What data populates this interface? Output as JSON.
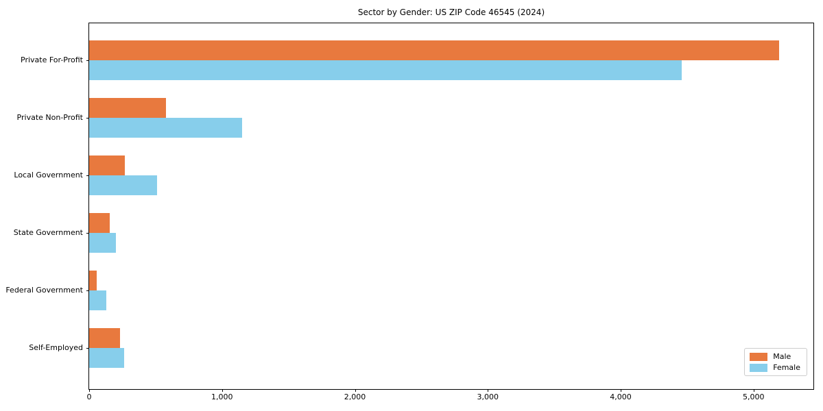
{
  "chart_data": {
    "type": "bar",
    "orientation": "horizontal",
    "title": "Sector by Gender: US ZIP Code 46545 (2024)",
    "categories": [
      "Private For-Profit",
      "Private Non-Profit",
      "Local Government",
      "State Government",
      "Federal Government",
      "Self-Employed"
    ],
    "series": [
      {
        "name": "Male",
        "color": "#e8793e",
        "values": [
          5190,
          580,
          270,
          155,
          55,
          230
        ]
      },
      {
        "name": "Female",
        "color": "#87ceeb",
        "values": [
          4460,
          1150,
          510,
          200,
          130,
          265
        ]
      }
    ],
    "xlabel": "",
    "ylabel": "",
    "xlim": [
      0,
      5450
    ],
    "x_ticks": [
      {
        "value": 0,
        "label": "0"
      },
      {
        "value": 1000,
        "label": "1,000"
      },
      {
        "value": 2000,
        "label": "2,000"
      },
      {
        "value": 3000,
        "label": "3,000"
      },
      {
        "value": 4000,
        "label": "4,000"
      },
      {
        "value": 5000,
        "label": "5,000"
      }
    ],
    "grid": false,
    "legend": {
      "position": "lower right"
    },
    "colors": {
      "male": "#e8793e",
      "female": "#87ceeb",
      "spine": "#000000",
      "legend_border": "#cccccc"
    }
  }
}
